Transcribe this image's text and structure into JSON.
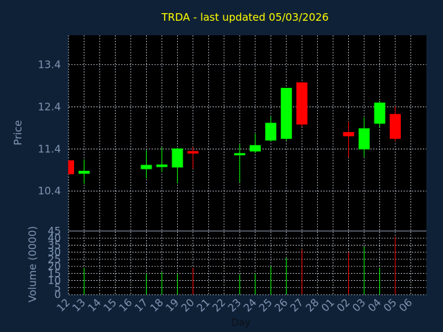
{
  "chart_data": {
    "type": "candlestick",
    "title": "TRDA - last updated 05/03/2026",
    "xlabel": "Day",
    "price_panel": {
      "ylabel": "Price",
      "ylim": [
        9.45,
        14.1
      ],
      "ticks": [
        "10.4",
        "11.4",
        "12.4",
        "13.4"
      ],
      "grid": true
    },
    "volume_panel": {
      "ylabel": "Volume (0000)",
      "ylim": [
        0,
        45
      ],
      "ticks": [
        "0",
        "5",
        "10",
        "15",
        "20",
        "25",
        "30",
        "35",
        "40",
        "45"
      ],
      "grid": true
    },
    "x_ticks": [
      "12",
      "13",
      "14",
      "15",
      "16",
      "17",
      "18",
      "19",
      "20",
      "21",
      "22",
      "23",
      "24",
      "25",
      "26",
      "27",
      "28",
      "01",
      "02",
      "03",
      "04",
      "05",
      "06"
    ],
    "up_color": "#00ff00",
    "down_color": "#ff0000",
    "candles": [
      {
        "day": "12",
        "open": 11.13,
        "high": 11.13,
        "low": 10.8,
        "close": 10.8,
        "volume": 0
      },
      {
        "day": "13",
        "open": 10.81,
        "high": 11.15,
        "low": 10.57,
        "close": 10.88,
        "volume": 19
      },
      {
        "day": "17",
        "open": 10.92,
        "high": 11.37,
        "low": 10.7,
        "close": 11.02,
        "volume": 15
      },
      {
        "day": "18",
        "open": 10.97,
        "high": 11.44,
        "low": 10.85,
        "close": 11.03,
        "volume": 16
      },
      {
        "day": "19",
        "open": 10.96,
        "high": 11.42,
        "low": 10.58,
        "close": 11.41,
        "volume": 15
      },
      {
        "day": "20",
        "open": 11.35,
        "high": 11.45,
        "low": 10.93,
        "close": 11.29,
        "volume": 19
      },
      {
        "day": "23",
        "open": 11.25,
        "high": 11.51,
        "low": 10.6,
        "close": 11.3,
        "volume": 14
      },
      {
        "day": "24",
        "open": 11.34,
        "high": 11.76,
        "low": 11.3,
        "close": 11.49,
        "volume": 15
      },
      {
        "day": "25",
        "open": 11.6,
        "high": 12.17,
        "low": 11.58,
        "close": 12.02,
        "volume": 20
      },
      {
        "day": "26",
        "open": 11.64,
        "high": 12.84,
        "low": 11.6,
        "close": 12.85,
        "volume": 26
      },
      {
        "day": "27",
        "open": 12.98,
        "high": 12.99,
        "low": 11.93,
        "close": 11.98,
        "volume": 32
      },
      {
        "day": "02",
        "open": 11.8,
        "high": 12.05,
        "low": 11.2,
        "close": 11.7,
        "volume": 30
      },
      {
        "day": "03",
        "open": 11.39,
        "high": 12.15,
        "low": 11.21,
        "close": 11.89,
        "volume": 34
      },
      {
        "day": "04",
        "open": 12.0,
        "high": 12.54,
        "low": 11.92,
        "close": 12.5,
        "volume": 19
      },
      {
        "day": "05",
        "open": 12.23,
        "high": 12.41,
        "low": 11.58,
        "close": 11.64,
        "volume": 41
      }
    ]
  }
}
